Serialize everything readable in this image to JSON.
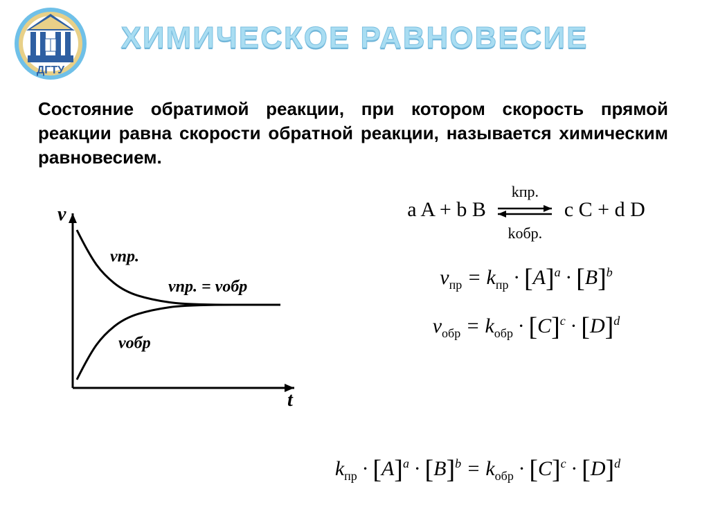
{
  "logo": {
    "text": "ДГТУ",
    "building_color": "#e8d088",
    "columns_color": "#2e5fa2",
    "roof_color": "#2e5fa2",
    "ring_inner": "#e8d088",
    "ring_outer": "#6fc0e8"
  },
  "title": {
    "text": "ХИМИЧЕСКОЕ РАВНОВЕСИЕ",
    "color": "#a9ddf2",
    "stroke": "#7bbfe0",
    "fontsize": 44
  },
  "definition": "Состояние обратимой реакции, при котором скорость прямой реакции равна скорости обратной реакции, называется химическим равновесием.",
  "chart": {
    "type": "line",
    "xlabel": "t",
    "ylabel": "v",
    "v_pr_label": "vпр.",
    "v_obr_label": "vобр",
    "eq_label": "vпр. = vобр",
    "axis_color": "#000000",
    "line_color": "#000000",
    "line_width": 3,
    "label_fontsize": 24,
    "axis_fontsize": 28,
    "xlim": [
      0,
      100
    ],
    "ylim": [
      0,
      100
    ],
    "equilibrium_y": 50,
    "v_pr_points": [
      [
        2,
        95
      ],
      [
        8,
        80
      ],
      [
        15,
        68
      ],
      [
        25,
        58
      ],
      [
        38,
        53
      ],
      [
        55,
        50
      ],
      [
        100,
        50
      ]
    ],
    "v_obr_points": [
      [
        2,
        5
      ],
      [
        8,
        20
      ],
      [
        15,
        32
      ],
      [
        25,
        42
      ],
      [
        38,
        47
      ],
      [
        55,
        50
      ],
      [
        100,
        50
      ]
    ]
  },
  "reaction": {
    "left": "a A + b B",
    "right": "c C + d D",
    "k_forward": "kпр.",
    "k_reverse": "kобр.",
    "arrow_color": "#000000"
  },
  "formulas": {
    "v_pr_lhs": "v",
    "v_pr_sub": "пр",
    "k_pr": "k",
    "k_pr_sub": "пр",
    "v_obr_sub": "обр",
    "k_obr_sub": "обр",
    "A": "A",
    "B": "B",
    "C": "C",
    "D": "D",
    "a": "a",
    "b": "b",
    "c": "c",
    "d": "d",
    "eq": "=",
    "dot": "·"
  }
}
